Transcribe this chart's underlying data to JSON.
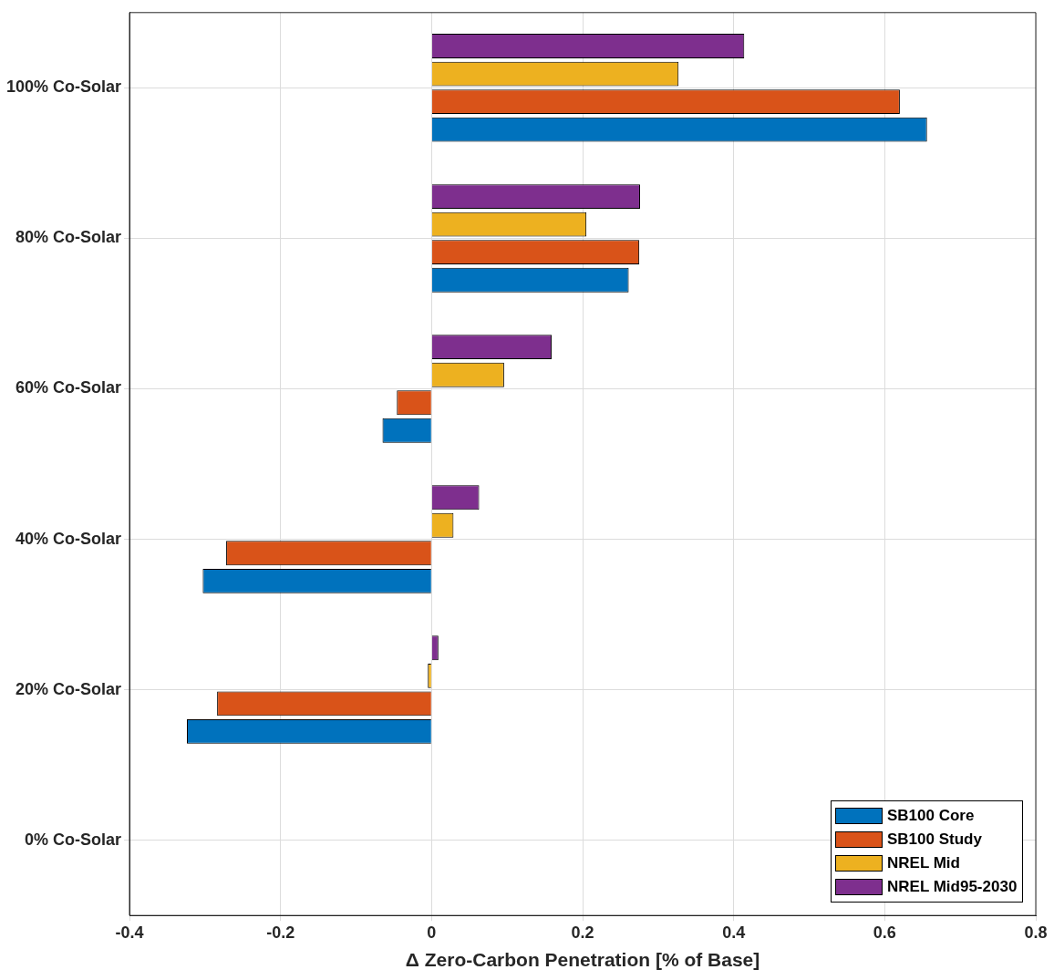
{
  "chart_data": {
    "type": "bar",
    "orientation": "horizontal",
    "xlabel": "Δ Zero-Carbon Penetration [% of Base]",
    "categories": [
      "100% Co-Solar",
      "80% Co-Solar",
      "60% Co-Solar",
      "40% Co-Solar",
      "20% Co-Solar",
      "0% Co-Solar"
    ],
    "series": [
      {
        "name": "SB100 Core",
        "color": "#0072bd",
        "values": [
          0.656,
          0.261,
          -0.065,
          -0.303,
          -0.324,
          0
        ]
      },
      {
        "name": "SB100 Study",
        "color": "#d95319",
        "values": [
          0.62,
          0.275,
          -0.046,
          -0.272,
          -0.284,
          0
        ]
      },
      {
        "name": "NREL Mid",
        "color": "#edb120",
        "values": [
          0.327,
          0.205,
          0.096,
          0.029,
          -0.005,
          0
        ]
      },
      {
        "name": "NREL Mid95-2030",
        "color": "#7e2f8e",
        "values": [
          0.414,
          0.276,
          0.159,
          0.063,
          0.009,
          0
        ]
      }
    ],
    "xlim": [
      -0.4,
      0.8
    ],
    "xticks": [
      -0.4,
      -0.2,
      0,
      0.2,
      0.4,
      0.6,
      0.8
    ],
    "grid": true,
    "legend": "bottom right"
  }
}
